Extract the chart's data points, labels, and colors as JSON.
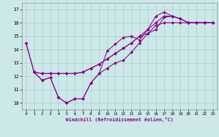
{
  "xlabel": "Windchill (Refroidissement éolien,°C)",
  "xlim": [
    -0.5,
    23.5
  ],
  "ylim": [
    9.5,
    17.5
  ],
  "yticks": [
    10,
    11,
    12,
    13,
    14,
    15,
    16,
    17
  ],
  "xticks": [
    0,
    1,
    2,
    3,
    4,
    5,
    6,
    7,
    8,
    9,
    10,
    11,
    12,
    13,
    14,
    15,
    16,
    17,
    18,
    19,
    20,
    21,
    22,
    23
  ],
  "bg_color": "#cce8e8",
  "line_color": "#880088",
  "grid_color": "#aacccc",
  "line1_x": [
    0,
    1,
    2,
    3,
    4,
    5,
    6,
    7,
    8,
    9,
    10,
    11,
    12,
    13,
    14,
    15,
    16,
    17,
    18,
    19,
    20,
    21,
    22,
    23
  ],
  "line1_y": [
    14.5,
    12.3,
    11.7,
    11.9,
    10.4,
    10.0,
    10.3,
    10.3,
    11.5,
    12.2,
    13.9,
    14.4,
    14.9,
    15.0,
    14.7,
    15.5,
    16.5,
    16.8,
    16.5,
    16.3,
    16.0,
    16.0,
    16.0,
    16.0
  ],
  "line2_x": [
    0,
    1,
    2,
    3,
    4,
    5,
    6,
    7,
    8,
    9,
    10,
    11,
    12,
    13,
    14,
    15,
    16,
    17,
    18,
    19,
    20,
    21,
    22,
    23
  ],
  "line2_y": [
    14.5,
    12.3,
    11.7,
    11.9,
    10.4,
    10.0,
    10.3,
    10.3,
    11.5,
    12.2,
    12.6,
    13.0,
    13.2,
    13.8,
    14.5,
    15.2,
    15.5,
    16.4,
    16.5,
    16.3,
    16.0,
    16.0,
    16.0,
    16.0
  ],
  "line3_x": [
    1,
    2,
    3,
    4,
    5,
    6,
    7,
    8,
    9,
    10,
    11,
    12,
    13,
    14,
    15,
    16,
    17,
    18,
    19,
    20,
    21,
    22,
    23
  ],
  "line3_y": [
    12.3,
    12.2,
    12.2,
    12.2,
    12.2,
    12.2,
    12.3,
    12.6,
    12.9,
    13.3,
    13.7,
    14.1,
    14.5,
    15.0,
    15.5,
    16.0,
    16.5,
    16.5,
    16.3,
    16.0,
    16.0,
    16.0,
    16.0
  ],
  "line4_x": [
    1,
    2,
    3,
    4,
    5,
    6,
    7,
    8,
    9,
    10,
    11,
    12,
    13,
    14,
    15,
    16,
    17,
    18,
    19,
    20,
    21,
    22,
    23
  ],
  "line4_y": [
    12.3,
    12.2,
    12.2,
    12.2,
    12.2,
    12.2,
    12.3,
    12.6,
    12.9,
    13.3,
    13.7,
    14.1,
    14.5,
    15.0,
    15.2,
    15.8,
    16.0,
    16.0,
    16.0,
    16.0,
    16.0,
    16.0,
    16.0
  ]
}
